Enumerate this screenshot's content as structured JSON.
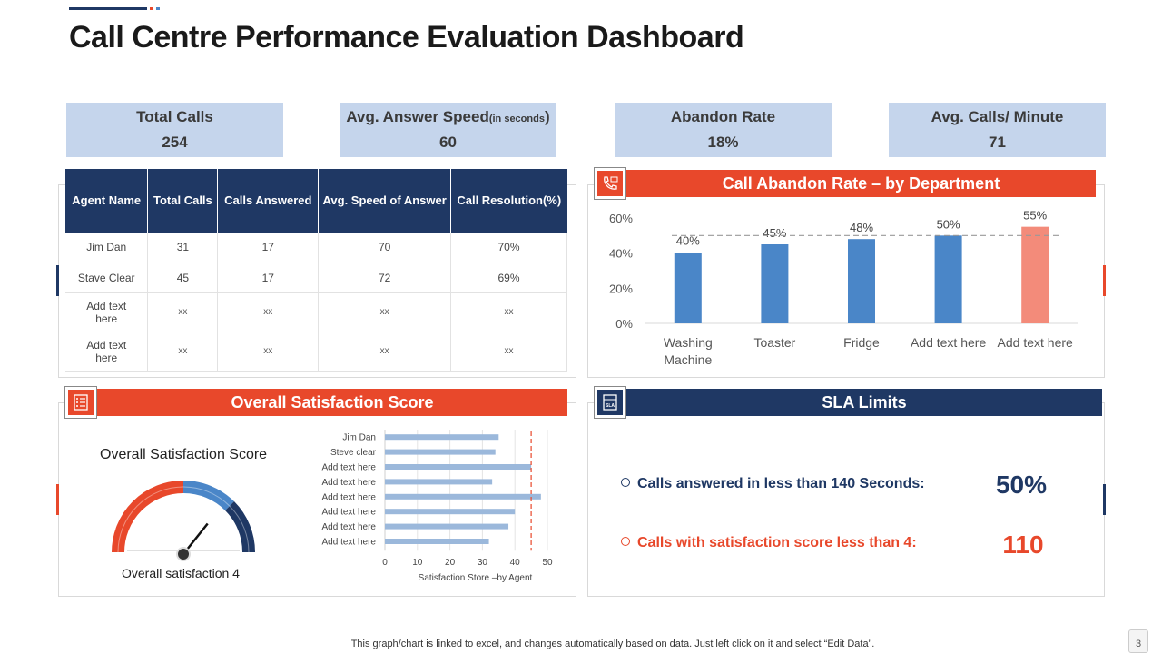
{
  "title": "Call Centre Performance Evaluation Dashboard",
  "kpis": [
    {
      "label": "Total Calls",
      "value": "254"
    },
    {
      "label": "Avg. Answer Speed",
      "sub": "(in seconds",
      "close": ")",
      "value": "60"
    },
    {
      "label": "Abandon Rate",
      "value": "18%"
    },
    {
      "label": "Avg. Calls/ Minute",
      "value": "71"
    }
  ],
  "table": {
    "headers": [
      "Agent Name",
      "Total Calls",
      "Calls Answered",
      "Avg. Speed of Answer",
      "Call Resolution(%)"
    ],
    "rows": [
      [
        "Jim Dan",
        "31",
        "17",
        "70",
        "70%"
      ],
      [
        "Stave Clear",
        "45",
        "17",
        "72",
        "69%"
      ],
      [
        "Add text here",
        "xx",
        "xx",
        "xx",
        "xx"
      ],
      [
        "Add text here",
        "xx",
        "xx",
        "xx",
        "xx"
      ]
    ]
  },
  "abandon_header": "Call Abandon Rate – by  Department",
  "satisfaction_header": "Overall Satisfaction Score",
  "sla_header": "SLA Limits",
  "gauge": {
    "title": "Overall  Satisfaction Score",
    "caption": "Overall satisfaction 4",
    "value": 4,
    "max": 5
  },
  "sla": {
    "row1_label": "Calls answered in less than 140 Seconds:",
    "row1_value": "50%",
    "row2_label": "Calls with satisfaction score less than 4:",
    "row2_value": "110"
  },
  "colors": {
    "navy": "#1f3864",
    "orange": "#e8482b",
    "blue_bar": "#4a86c8",
    "highlight_bar": "#f38b7a",
    "light_bar": "#9bb8db"
  },
  "chart_data": [
    {
      "type": "bar",
      "title": "Call Abandon Rate – by  Department",
      "categories": [
        "Washing Machine",
        "Toaster",
        "Fridge",
        "Add text here",
        "Add text here"
      ],
      "values": [
        40,
        45,
        48,
        50,
        55
      ],
      "data_labels": [
        "40%",
        "45%",
        "48%",
        "50%",
        "55%"
      ],
      "y_ticks": [
        "0%",
        "20%",
        "40%",
        "60%"
      ],
      "ylim": [
        0,
        60
      ],
      "reference_line": 50,
      "highlight_index": 4
    },
    {
      "type": "bar",
      "orientation": "horizontal",
      "title": "",
      "xlabel": "Satisfaction Store –by Agent",
      "categories": [
        "Jim Dan",
        "Steve clear",
        "Add text here",
        "Add text here",
        "Add text here",
        "Add text here",
        "Add text here",
        "Add text here"
      ],
      "values": [
        35,
        34,
        45,
        33,
        48,
        40,
        38,
        32
      ],
      "x_ticks": [
        "0",
        "10",
        "20",
        "30",
        "40",
        "50"
      ],
      "xlim": [
        0,
        50
      ],
      "reference_line": 45
    }
  ]
}
